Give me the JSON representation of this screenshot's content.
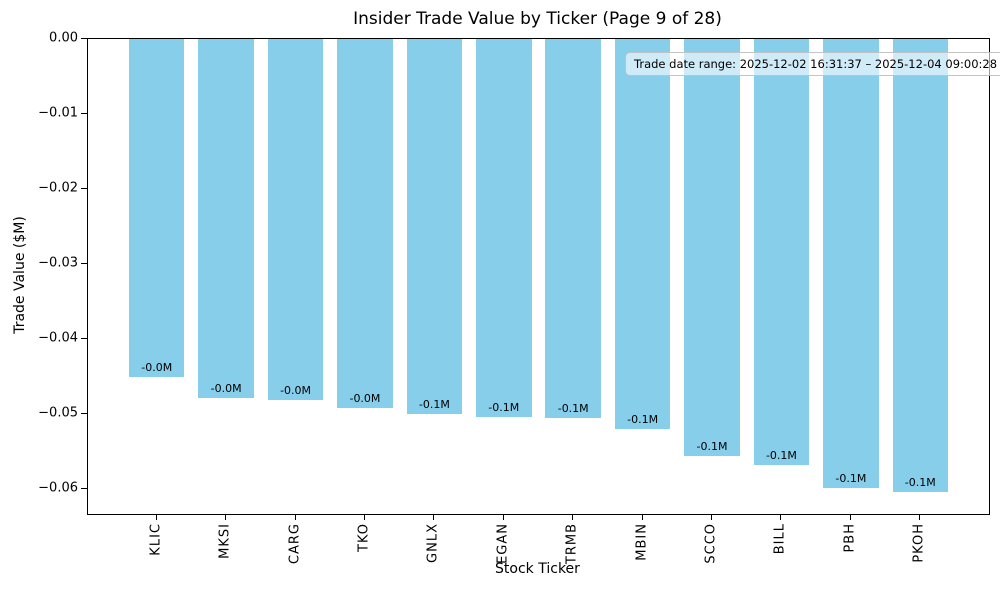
{
  "title": "Insider Trade Value by Ticker (Page 9 of 28)",
  "annotation": "Trade date range: 2025-12-02 16:31:37 – 2025-12-04 09:00:28",
  "colors": {
    "bar": "#87CEEB",
    "background": "#ffffff",
    "text": "#000000",
    "annotation_bg": "rgba(255,255,255,0.6)",
    "annotation_border": "#bebebe"
  },
  "chart_data": {
    "type": "bar",
    "title": "Insider Trade Value by Ticker (Page 9 of 28)",
    "xlabel": "Stock Ticker",
    "ylabel": "Trade Value ($M)",
    "categories": [
      "KLIC",
      "MKSI",
      "CARG",
      "TKO",
      "GNLX",
      "EGAN",
      "TRMB",
      "MBIN",
      "SCCO",
      "BILL",
      "PBH",
      "PKOH"
    ],
    "values": [
      -0.045,
      -0.0478,
      -0.0481,
      -0.0492,
      -0.05,
      -0.0504,
      -0.0505,
      -0.052,
      -0.0556,
      -0.0568,
      -0.0599,
      -0.0604
    ],
    "bar_labels": [
      "-0.0M",
      "-0.0M",
      "-0.0M",
      "-0.0M",
      "-0.1M",
      "-0.1M",
      "-0.1M",
      "-0.1M",
      "-0.1M",
      "-0.1M",
      "-0.1M",
      "-0.1M"
    ],
    "yticks": [
      0,
      -0.01,
      -0.02,
      -0.03,
      -0.04,
      -0.05,
      -0.06
    ],
    "ytick_labels": [
      "0.00",
      "−0.01",
      "−0.02",
      "−0.03",
      "−0.04",
      "−0.05",
      "−0.06"
    ],
    "ylim": [
      -0.0633,
      0
    ],
    "grid": false,
    "legend": null,
    "annotation_text": "Trade date range: 2025-12-02 16:31:37 – 2025-12-04 09:00:28"
  }
}
